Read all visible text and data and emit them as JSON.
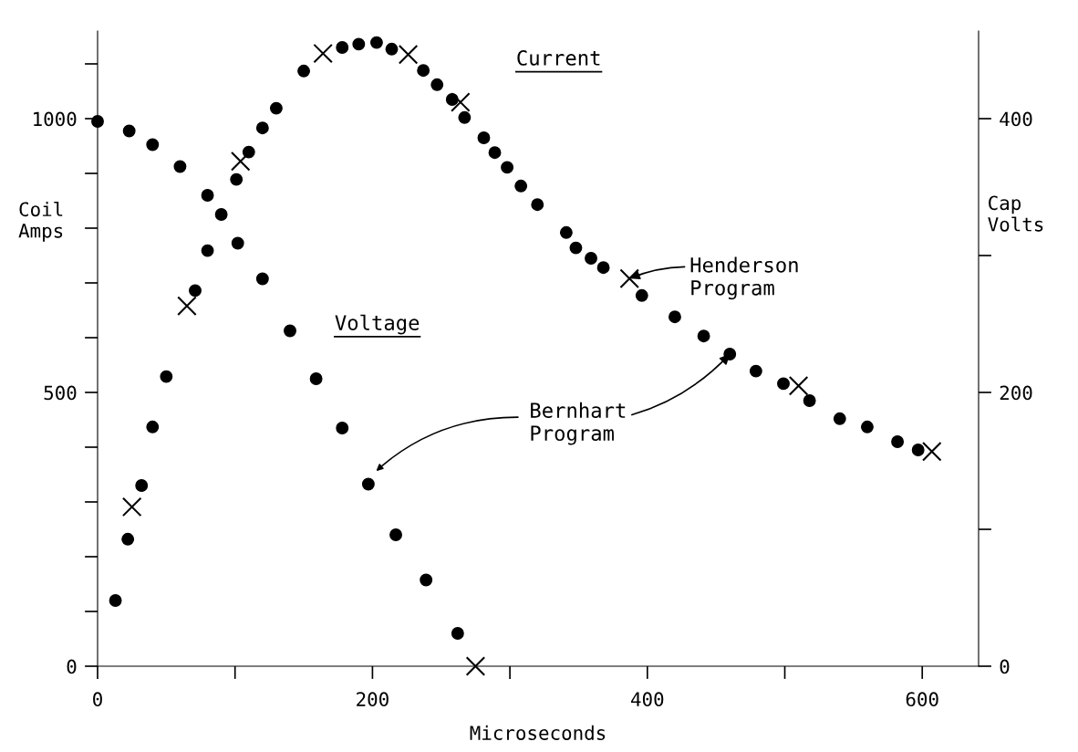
{
  "chart_data": {
    "type": "scatter",
    "xlabel": "Microseconds",
    "ylabel": "Coil\nAmps",
    "y2label": "Cap\nVolts",
    "xlim": [
      0,
      641
    ],
    "xticks": [
      0,
      {
        "value": 100,
        "label": null
      },
      200,
      {
        "value": 300,
        "label": null
      },
      400,
      {
        "value": 500,
        "label": null
      },
      600
    ],
    "ylim": [
      0,
      1160
    ],
    "yticks": [
      0,
      {
        "value": 100,
        "label": null
      },
      {
        "value": 200,
        "label": null
      },
      {
        "value": 300,
        "label": null
      },
      {
        "value": 400,
        "label": null
      },
      500,
      {
        "value": 600,
        "label": null
      },
      {
        "value": 700,
        "label": null
      },
      {
        "value": 800,
        "label": null
      },
      {
        "value": 900,
        "label": null
      },
      1000,
      {
        "value": 1100,
        "label": null
      }
    ],
    "y2lim": [
      0,
      464
    ],
    "y2ticks": [
      0,
      {
        "value": 100,
        "label": null
      },
      200,
      {
        "value": 300,
        "label": null
      },
      400
    ],
    "grid": false,
    "legend": false,
    "series": [
      {
        "color": "#000000",
        "marker": "circle",
        "x": [
          13,
          22,
          32,
          40,
          50,
          71,
          80,
          101,
          110,
          120,
          130,
          150,
          178,
          190,
          203,
          214,
          237,
          247,
          258,
          267,
          281,
          289,
          298,
          308,
          320,
          341,
          348,
          359,
          368,
          396,
          420,
          441,
          460,
          479,
          499,
          518,
          540,
          560,
          582,
          597
        ],
        "values": [
          120,
          232,
          330,
          437,
          529,
          686,
          759,
          889,
          939,
          983,
          1019,
          1087,
          1130,
          1136,
          1139,
          1127,
          1088,
          1062,
          1035,
          1002,
          965,
          938,
          911,
          877,
          843,
          792,
          764,
          745,
          728,
          677,
          638,
          603,
          570,
          539,
          516,
          485,
          452,
          437,
          410,
          395
        ]
      },
      {
        "color": "#000000",
        "marker": "cross",
        "x": [
          25,
          65,
          104,
          164,
          226,
          264,
          387,
          510,
          607
        ],
        "values": [
          291,
          658,
          922,
          1119,
          1117,
          1030,
          708,
          512,
          392
        ]
      },
      {
        "color": "#000000",
        "marker": "circle",
        "axis": "y2",
        "x": [
          0,
          23,
          40,
          60,
          80,
          90,
          102,
          120,
          140,
          159,
          178,
          197,
          217,
          239,
          262
        ],
        "values": [
          398,
          391,
          381,
          365,
          344,
          330,
          309,
          283,
          245,
          210,
          174,
          133,
          96,
          63,
          24
        ]
      },
      {
        "color": "#000000",
        "marker": "cross",
        "axis": "y2",
        "x": [
          275
        ],
        "values": [
          0
        ]
      }
    ],
    "annotations": [
      "Current",
      "Voltage",
      {
        "text": "Henderson\nProgram",
        "x": 387,
        "y": 708
      },
      {
        "text": "Bernhart\nProgram",
        "x": 460,
        "y": 570
      }
    ]
  }
}
